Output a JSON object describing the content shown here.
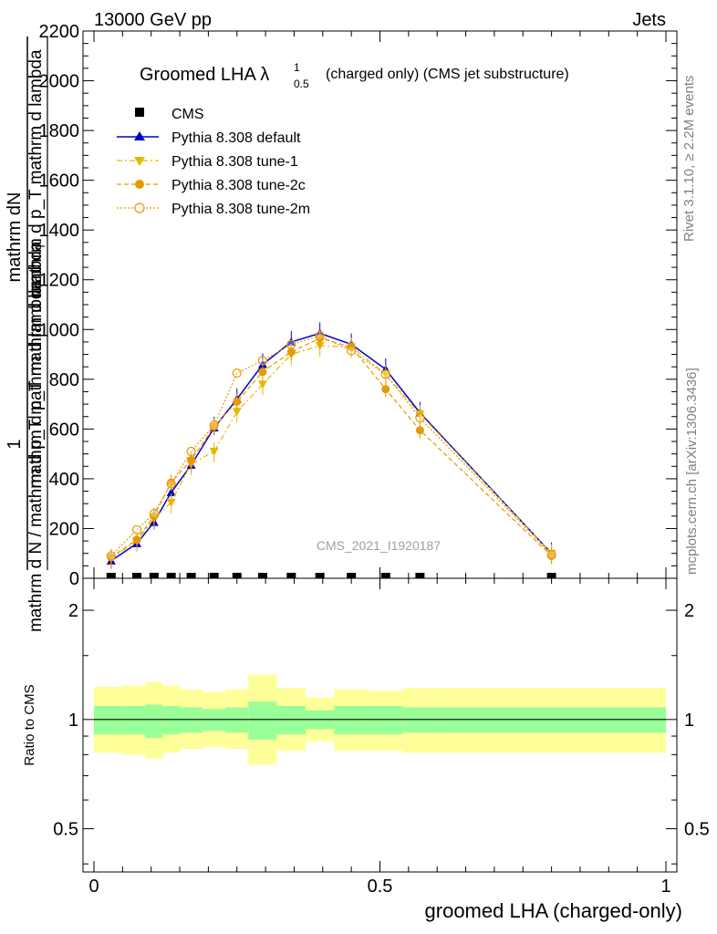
{
  "header": {
    "left": "13000 GeV pp",
    "right": "Jets"
  },
  "side_texts": {
    "rivet": "Rivet 3.1.10, ≥ 2.2M events",
    "mcplots": "mcplots.cern.ch [arXiv:1306.3436]"
  },
  "chart_data": [
    {
      "type": "line",
      "title": "Groomed LHA λ",
      "title_superscript": "1",
      "title_subscript": "0.5",
      "title_suffix": "(charged only) (CMS jet substructure)",
      "watermark": "CMS_2021_I1920187",
      "ylabel_top": "mathrm dN",
      "ylabel_one": "1",
      "ylabel_mid": "mathrm d p_T mathrm d lambda",
      "ylabel_mid2": "mathrm d p_T mathrm d lambda",
      "ylabel_sub": "T",
      "ylabel_bottom": "mathrm d N / mathrm d p_T mathrm d lambda",
      "xlim": [
        0,
        1
      ],
      "ylim": [
        0,
        2200
      ],
      "yticks": [
        "0",
        "200",
        "400",
        "600",
        "800",
        "1000",
        "1200",
        "1400",
        "1600",
        "1800",
        "2000",
        "2200"
      ],
      "ytick_values": [
        0,
        200,
        400,
        600,
        800,
        1000,
        1200,
        1400,
        1600,
        1800,
        2000,
        2200
      ],
      "legend_position": "top-left",
      "x": [
        0.03,
        0.075,
        0.105,
        0.135,
        0.17,
        0.21,
        0.25,
        0.295,
        0.345,
        0.395,
        0.45,
        0.51,
        0.57,
        0.8
      ],
      "series": [
        {
          "name": "CMS",
          "marker": "square",
          "color": "#000000",
          "dash": "",
          "values": [
            0,
            0,
            0,
            0,
            0,
            0,
            0,
            0,
            0,
            0,
            0,
            0,
            0,
            0
          ]
        },
        {
          "name": "Pythia 8.308 default",
          "marker": "triangle-up",
          "color": "#0000cc",
          "dash": "",
          "values": [
            70,
            140,
            225,
            345,
            455,
            605,
            720,
            860,
            950,
            985,
            940,
            840,
            665,
            100
          ]
        },
        {
          "name": "Pythia 8.308 tune-1",
          "marker": "triangle-down",
          "color": "#e6b800",
          "dash": "6,3,2,3",
          "values": [
            80,
            150,
            240,
            305,
            460,
            510,
            670,
            780,
            900,
            935,
            930,
            820,
            660,
            100
          ]
        },
        {
          "name": "Pythia 8.308 tune-2c",
          "marker": "circle",
          "color": "#e69900",
          "dash": "5,3",
          "values": [
            85,
            155,
            250,
            385,
            475,
            610,
            710,
            830,
            910,
            965,
            930,
            760,
            595,
            90
          ]
        },
        {
          "name": "Pythia 8.308 tune-2m",
          "marker": "circle-open",
          "color": "#e69900",
          "dash": "2,2",
          "values": [
            90,
            195,
            260,
            380,
            510,
            615,
            825,
            875,
            940,
            975,
            915,
            820,
            645,
            95
          ]
        }
      ]
    },
    {
      "type": "area",
      "ylabel": "Ratio to CMS",
      "xlabel": "groomed LHA (charged-only)",
      "xlim": [
        0,
        1
      ],
      "ylim": [
        0.38,
        2.45
      ],
      "log_y": true,
      "yticks": [
        "0.5",
        "1",
        "2"
      ],
      "ytick_values": [
        0.5,
        1,
        2
      ],
      "xticks": [
        "0",
        "0.5",
        "1"
      ],
      "xtick_values": [
        0,
        0.5,
        1
      ],
      "bin_edges": [
        0,
        0.05,
        0.09,
        0.12,
        0.15,
        0.19,
        0.23,
        0.27,
        0.32,
        0.37,
        0.42,
        0.48,
        0.54,
        0.6,
        1
      ],
      "bands": {
        "stat_color": "#99ff99",
        "total_color": "#ffff99",
        "inner_low": [
          0.91,
          0.91,
          0.89,
          0.91,
          0.92,
          0.93,
          0.92,
          0.88,
          0.91,
          0.94,
          0.91,
          0.91,
          0.92,
          0.92
        ],
        "inner_high": [
          1.09,
          1.09,
          1.1,
          1.09,
          1.08,
          1.07,
          1.08,
          1.12,
          1.09,
          1.06,
          1.09,
          1.09,
          1.08,
          1.08
        ],
        "outer_low": [
          0.81,
          0.8,
          0.78,
          0.81,
          0.83,
          0.84,
          0.83,
          0.75,
          0.82,
          0.87,
          0.82,
          0.82,
          0.81,
          0.81
        ],
        "outer_high": [
          1.23,
          1.24,
          1.27,
          1.24,
          1.21,
          1.19,
          1.21,
          1.33,
          1.22,
          1.15,
          1.21,
          1.2,
          1.22,
          1.22
        ]
      }
    }
  ]
}
